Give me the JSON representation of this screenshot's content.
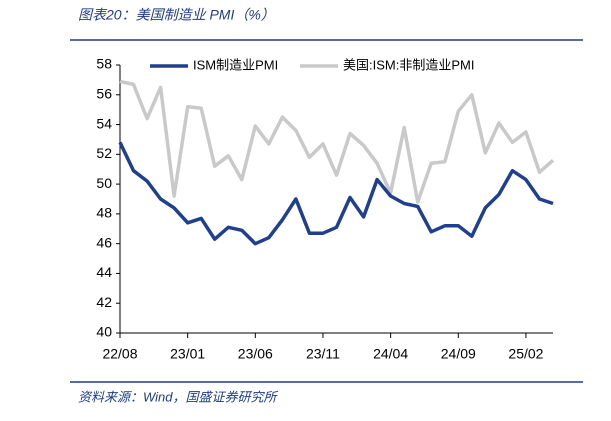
{
  "chart_data": {
    "type": "line",
    "title": "图表20：美国制造业 PMI（%）",
    "source": "资料来源：Wind，国盛证券研究所",
    "categories": [
      "22/08",
      null,
      null,
      null,
      null,
      "23/01",
      null,
      null,
      null,
      null,
      "23/06",
      null,
      null,
      null,
      null,
      "23/11",
      null,
      null,
      null,
      null,
      "24/04",
      null,
      null,
      null,
      null,
      "24/09",
      null,
      null,
      null,
      null,
      "25/02",
      null,
      null
    ],
    "series": [
      {
        "name": "ISM制造业PMI",
        "color": "#1f3f8f",
        "values": [
          52.8,
          50.9,
          50.2,
          49.0,
          48.4,
          47.4,
          47.7,
          46.3,
          47.1,
          46.9,
          46.0,
          46.4,
          47.6,
          49.0,
          46.7,
          46.7,
          47.1,
          49.1,
          47.8,
          50.3,
          49.2,
          48.7,
          48.5,
          46.8,
          47.2,
          47.2,
          46.5,
          48.4,
          49.3,
          50.9,
          50.3,
          49.0,
          48.7
        ]
      },
      {
        "name": "美国:ISM:非制造业PMI",
        "color": "#c9c9c9",
        "values": [
          56.9,
          56.7,
          54.4,
          56.5,
          49.2,
          55.2,
          55.1,
          51.2,
          51.9,
          50.3,
          53.9,
          52.7,
          54.5,
          53.6,
          51.8,
          52.7,
          50.6,
          53.4,
          52.6,
          51.4,
          49.4,
          53.8,
          48.8,
          51.4,
          51.5,
          54.9,
          56.0,
          52.1,
          54.1,
          52.8,
          53.5,
          50.8,
          51.6
        ]
      }
    ],
    "ylim": [
      40,
      58
    ],
    "yticks": [
      40,
      42,
      44,
      46,
      48,
      50,
      52,
      54,
      56,
      58
    ],
    "legend": "top"
  }
}
